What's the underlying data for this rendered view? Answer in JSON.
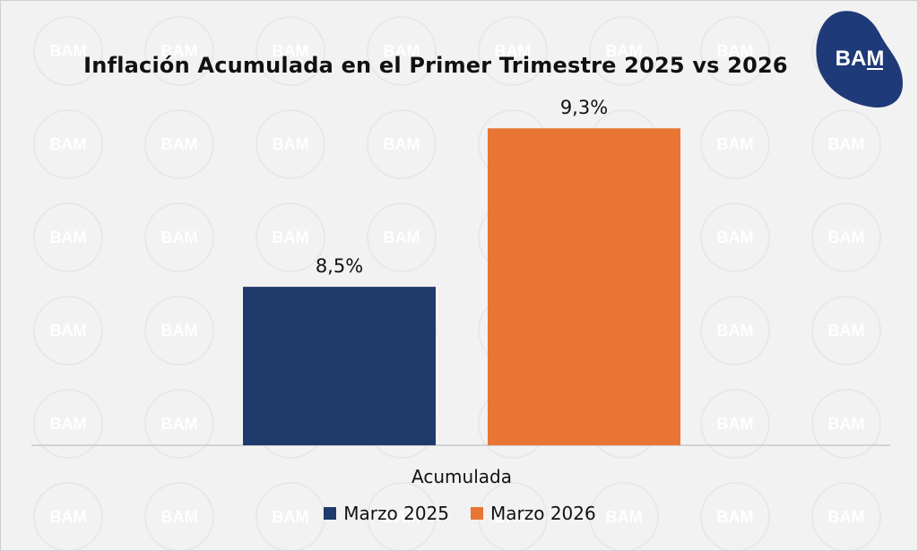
{
  "brand": {
    "logo_text": "BAM",
    "watermark_text": "BAM",
    "logo_color": "#1f3a78"
  },
  "chart_data": {
    "type": "bar",
    "title": "Inflación Acumulada en el Primer Trimestre 2025 vs 2026",
    "categories": [
      "Acumulada"
    ],
    "series": [
      {
        "name": "Marzo 2025",
        "values": [
          8.5
        ],
        "label": "8,5%",
        "color": "#1f3a6b"
      },
      {
        "name": "Marzo 2026",
        "values": [
          9.3
        ],
        "label": "9,3%",
        "color": "#e87534"
      }
    ],
    "xlabel": "",
    "ylabel": "",
    "ylim": [
      7.7,
      9.5
    ],
    "grid": false,
    "legend_position": "bottom"
  }
}
